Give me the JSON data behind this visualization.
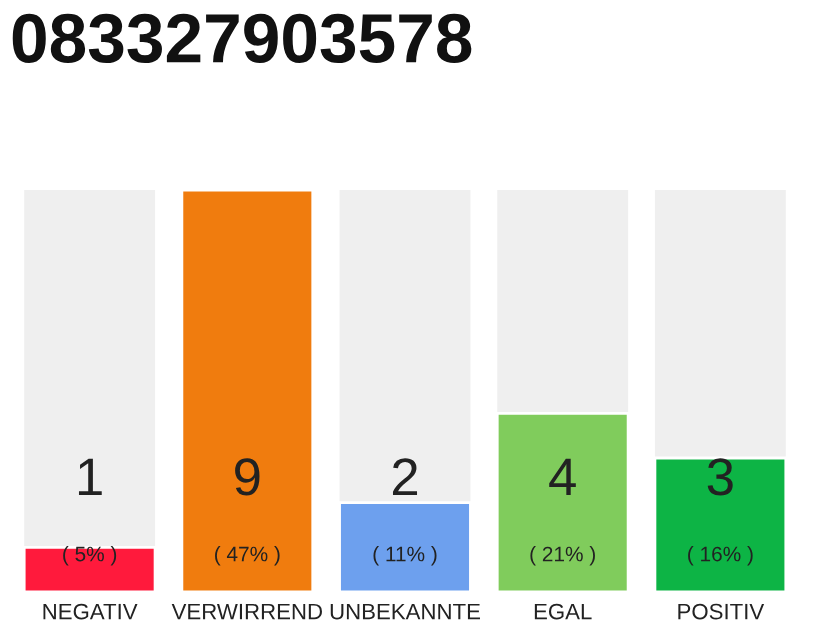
{
  "chart_data": {
    "type": "bar",
    "title": "083327903578",
    "categories": [
      "NEGATIV",
      "VERWIRREND",
      "UNBEKANNTE",
      "EGAL",
      "POSITIV"
    ],
    "values": [
      1,
      9,
      2,
      4,
      3
    ],
    "colors": [
      "#ff1a3c",
      "#f07c0e",
      "#6da0ee",
      "#80cc5c",
      "#0db445"
    ],
    "ylim": [
      0,
      9
    ],
    "data_labels": true,
    "grid": false,
    "legend": false,
    "tick_labels": "x",
    "annotations": [
      "( 5% )",
      "( 47% )",
      "( 11% )",
      "( 21% )",
      "( 16% )"
    ]
  }
}
